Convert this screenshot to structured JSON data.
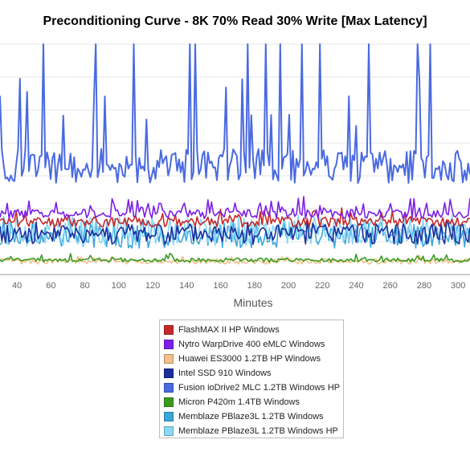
{
  "chart_data": {
    "type": "line",
    "title": "Preconditioning Curve - 8K 70% Read 30% Write [Max Latency]",
    "xlabel": "Minutes",
    "ylabel": "",
    "xlim": [
      30,
      307
    ],
    "ylim": [
      0,
      350
    ],
    "x_ticks": [
      40,
      60,
      80,
      100,
      120,
      140,
      160,
      180,
      200,
      220,
      240,
      260,
      280,
      300
    ],
    "grid": true,
    "legend_position": "bottom",
    "series": [
      {
        "name": "FlashMAX II HP Windows",
        "color": "#c62828",
        "base": 80,
        "amp": 8,
        "spike_every": 7,
        "spike": 14,
        "seed": 11
      },
      {
        "name": "Nytro WarpDrive 400 eMLC Windows",
        "color": "#7b1fe6",
        "base": 92,
        "amp": 7,
        "spike_every": 6,
        "spike": 22,
        "seed": 23
      },
      {
        "name": "Huawei ES3000 1.2TB HP Windows",
        "color": "#f2c08a",
        "base": 20,
        "amp": 4,
        "spike_every": 12,
        "spike": 6,
        "seed": 37
      },
      {
        "name": "Intel SSD 910 Windows",
        "color": "#1a2e9c",
        "base": 62,
        "amp": 16,
        "spike_every": 9,
        "spike": 8,
        "seed": 41
      },
      {
        "name": "Fusion ioDrive2 MLC 1.2TB Windows HP",
        "color": "#4a6ae0",
        "base": 165,
        "amp": 26,
        "spike_every": 17,
        "spike": 140,
        "seed": 53
      },
      {
        "name": "Micron P420m 1.4TB Windows",
        "color": "#3a9a1e",
        "base": 22,
        "amp": 3,
        "spike_every": 11,
        "spike": 8,
        "seed": 61
      },
      {
        "name": "Memblaze PBlaze3L 1.2TB Windows",
        "color": "#3aa6dc",
        "base": 60,
        "amp": 20,
        "spike_every": 8,
        "spike": 10,
        "seed": 71
      },
      {
        "name": "Memblaze PBlaze3L 1.2TB Windows HP",
        "color": "#8ad8f8",
        "base": 66,
        "amp": 22,
        "spike_every": 9,
        "spike": 12,
        "seed": 83
      }
    ]
  }
}
